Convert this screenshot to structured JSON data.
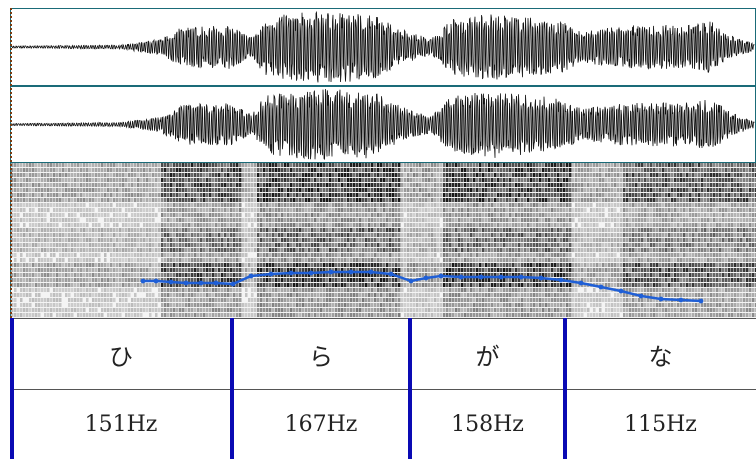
{
  "segments": [
    {
      "kana": "ひ",
      "freq": "151Hz"
    },
    {
      "kana": "ら",
      "freq": "167Hz"
    },
    {
      "kana": "が",
      "freq": "158Hz"
    },
    {
      "kana": "な",
      "freq": "115Hz"
    }
  ],
  "colors": {
    "waveform": "#111111",
    "pitch_line": "#1f5fd6",
    "divider": "#0a0ab4",
    "panel_border": "#1a6b78"
  }
}
